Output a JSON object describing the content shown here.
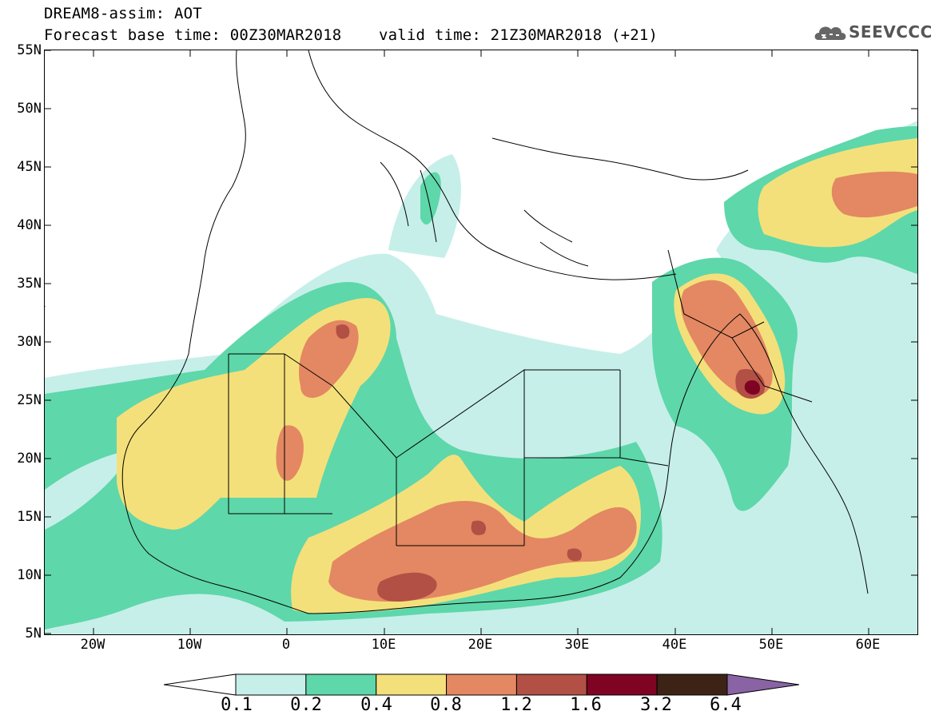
{
  "title": {
    "line1": "DREAM8-assim: AOT",
    "line2": "Forecast base time: 00Z30MAR2018    valid time: 21Z30MAR2018 (+21)"
  },
  "logo": {
    "text": "SEEVCCC",
    "icon": "cloud-icon"
  },
  "map": {
    "variable": "AOT",
    "lat_ticks": [
      "55N",
      "50N",
      "45N",
      "40N",
      "35N",
      "30N",
      "25N",
      "20N",
      "15N",
      "10N",
      "5N"
    ],
    "lon_ticks": [
      "20W",
      "10W",
      "0",
      "10E",
      "20E",
      "30E",
      "40E",
      "50E",
      "60E"
    ],
    "lon_range": [
      -25,
      65
    ],
    "lat_range": [
      5,
      55
    ]
  },
  "colorbar": {
    "labels": [
      "0.1",
      "0.2",
      "0.4",
      "0.8",
      "1.2",
      "1.6",
      "3.2",
      "6.4"
    ],
    "colors": [
      "#c6efe9",
      "#5ed7aa",
      "#f4e07a",
      "#e38862",
      "#b25045",
      "#7f0423",
      "#3c2316",
      "#8a63a5"
    ]
  }
}
